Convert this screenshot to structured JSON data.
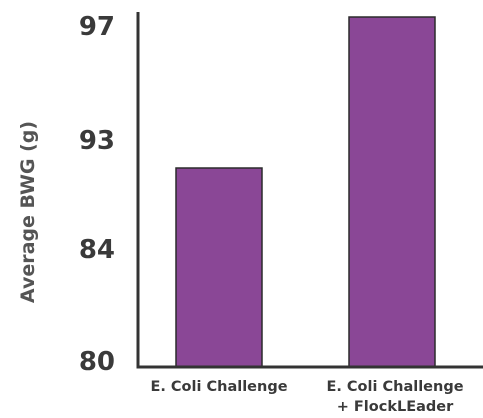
{
  "chart_data": {
    "type": "bar",
    "title": "",
    "xlabel": "",
    "ylabel": "Average BWG (g)",
    "categories": [
      [
        "E. Coli Challenge"
      ],
      [
        "E. Coli Challenge",
        "+ FlockLEader"
      ]
    ],
    "values": [
      91,
      98.2
    ],
    "y_ticks": [
      80,
      84,
      93,
      97
    ],
    "ylim": [
      80,
      98.5
    ],
    "bar_color": "#8a4796",
    "grid": false,
    "legend": "none"
  }
}
